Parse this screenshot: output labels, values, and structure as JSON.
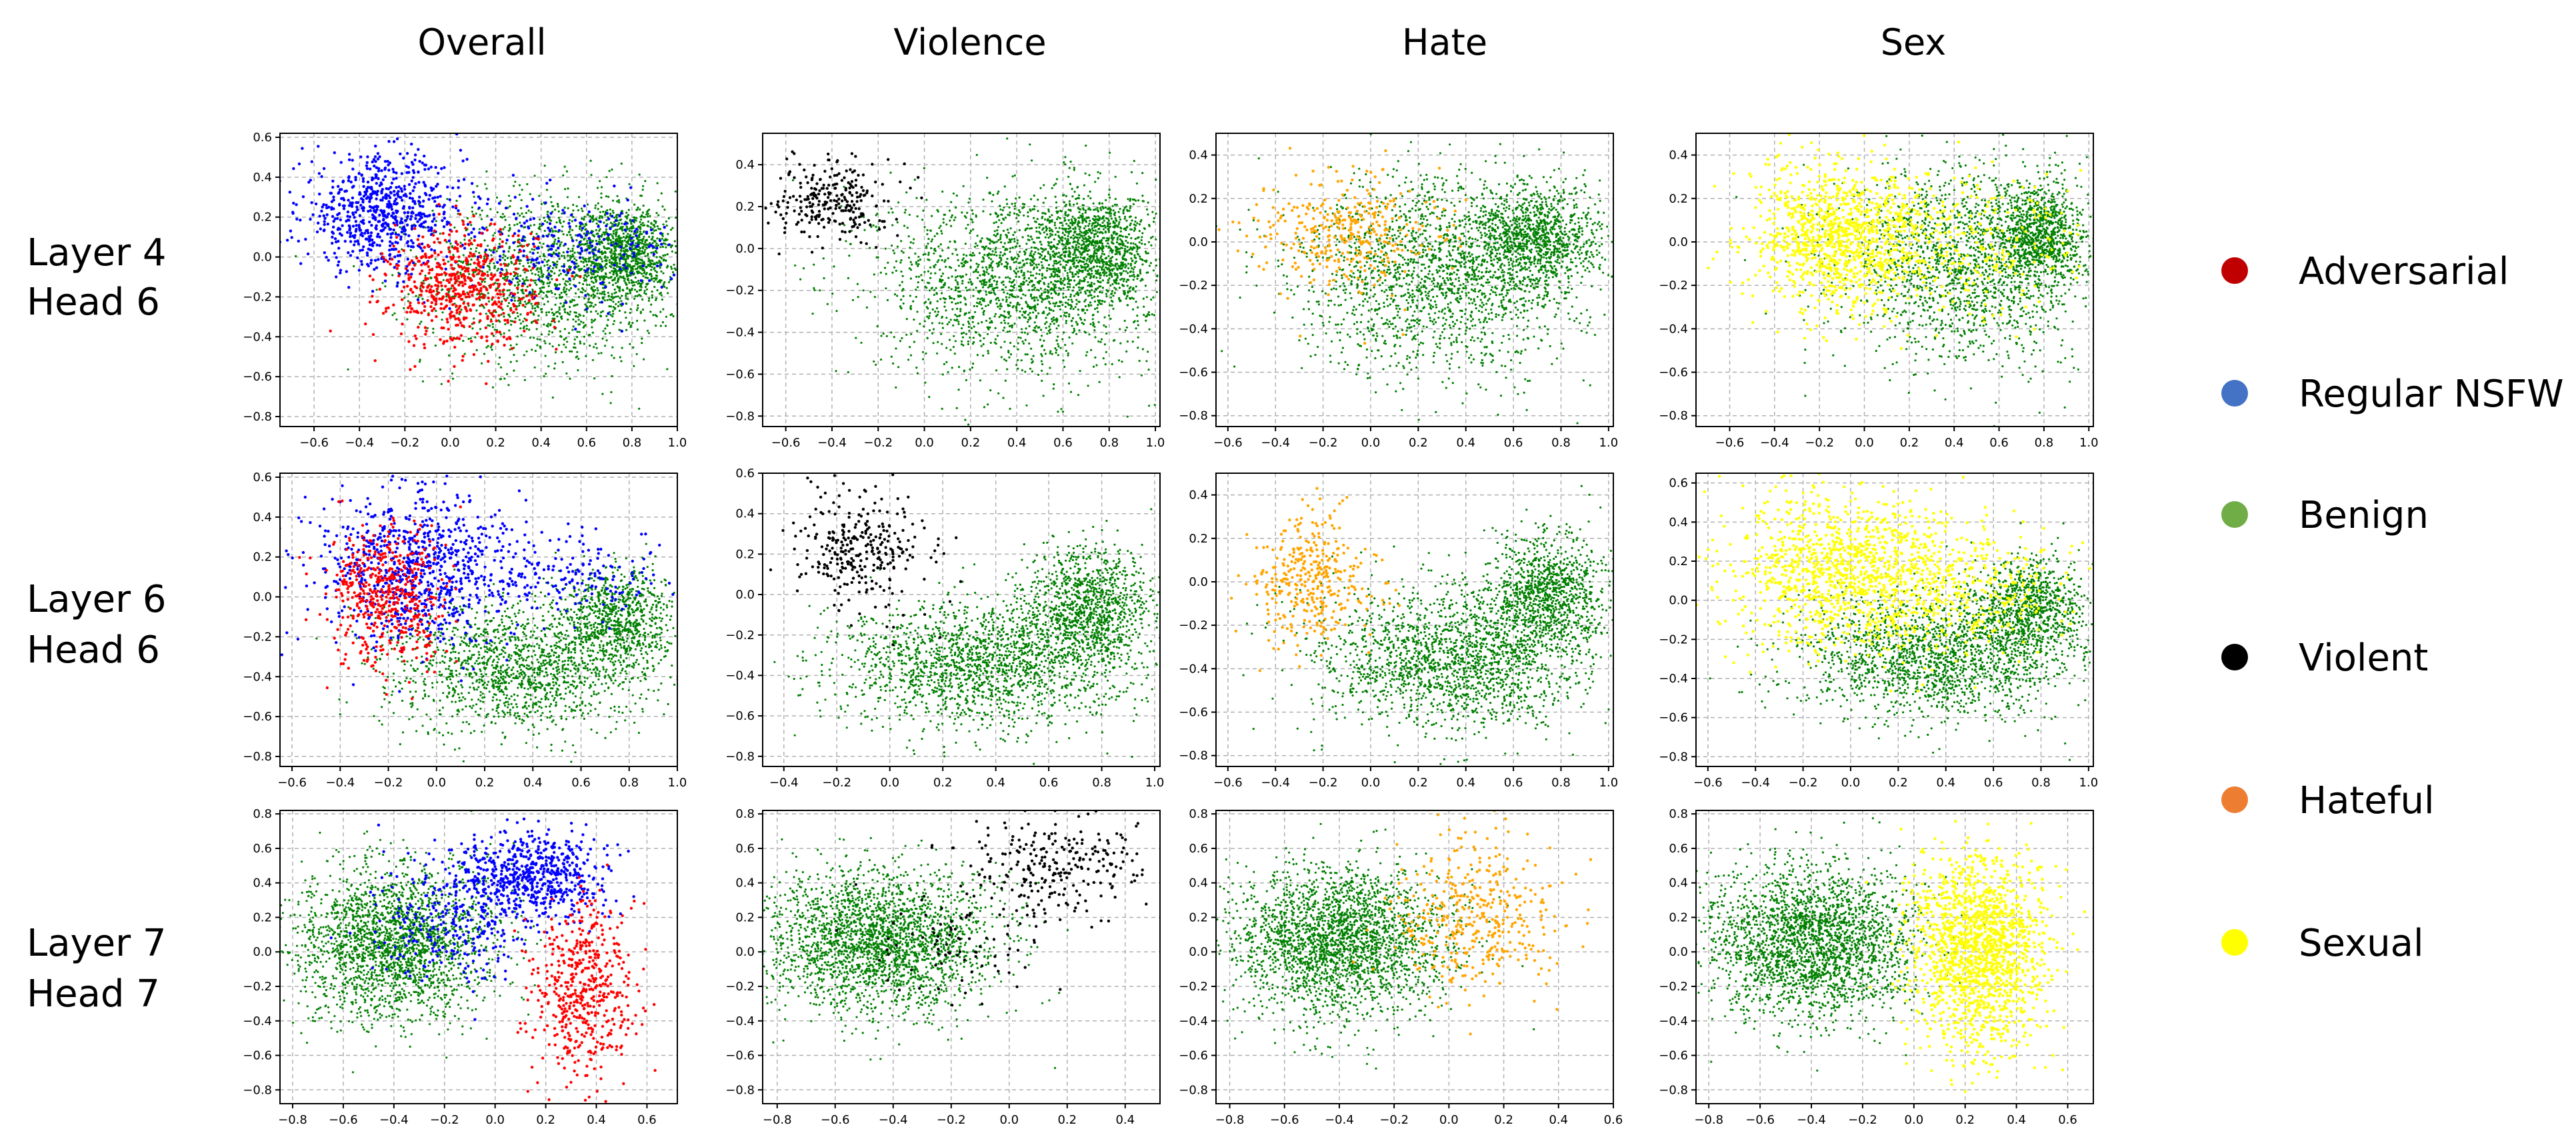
{
  "column_titles": [
    "Overall",
    "Violence",
    "Hate",
    "Sex"
  ],
  "row_labels": [
    {
      "line1": "Layer 4",
      "line2": "Head 6"
    },
    {
      "line1": "Layer 6",
      "line2": "Head 6"
    },
    {
      "line1": "Layer 7",
      "line2": "Head 7"
    }
  ],
  "legend": [
    {
      "label": "Adversarial",
      "color": "#c00000"
    },
    {
      "label": "Regular NSFW",
      "color": "#4472c4"
    },
    {
      "label": "Benign",
      "color": "#70ad47"
    },
    {
      "label": "Violent",
      "color": "#000000"
    },
    {
      "label": "Hateful",
      "color": "#ed7d31"
    },
    {
      "label": "Sexual",
      "color": "#ffff00"
    }
  ],
  "chart_data": [
    {
      "type": "scatter",
      "row": 0,
      "col": 0,
      "title": "Overall",
      "xlim": [
        -0.75,
        1.0
      ],
      "ylim": [
        -0.85,
        0.62
      ],
      "xticks": [
        -0.6,
        -0.4,
        -0.2,
        0.0,
        0.2,
        0.4,
        0.6,
        0.8,
        1.0
      ],
      "yticks": [
        -0.8,
        -0.6,
        -0.4,
        -0.2,
        0.0,
        0.2,
        0.4,
        0.6
      ],
      "series": [
        {
          "name": "Benign",
          "color": "#008000",
          "clusters": [
            {
              "cx": 0.45,
              "cy": -0.1,
              "sx": 0.28,
              "sy": 0.22,
              "n": 1500
            },
            {
              "cx": 0.78,
              "cy": 0.02,
              "sx": 0.1,
              "sy": 0.12,
              "n": 900
            }
          ]
        },
        {
          "name": "Regular NSFW",
          "color": "#0000ff",
          "clusters": [
            {
              "cx": -0.3,
              "cy": 0.22,
              "sx": 0.18,
              "sy": 0.14,
              "n": 700
            },
            {
              "cx": 0.5,
              "cy": 0.05,
              "sx": 0.25,
              "sy": 0.12,
              "n": 250
            }
          ]
        },
        {
          "name": "Adversarial",
          "color": "#ff0000",
          "clusters": [
            {
              "cx": 0.05,
              "cy": -0.15,
              "sx": 0.16,
              "sy": 0.15,
              "n": 600
            }
          ]
        }
      ]
    },
    {
      "type": "scatter",
      "row": 0,
      "col": 1,
      "title": "Violence",
      "xlim": [
        -0.7,
        1.02
      ],
      "ylim": [
        -0.85,
        0.55
      ],
      "xticks": [
        -0.6,
        -0.4,
        -0.2,
        0.0,
        0.2,
        0.4,
        0.6,
        0.8,
        1.0
      ],
      "yticks": [
        -0.8,
        -0.6,
        -0.4,
        -0.2,
        0.0,
        0.2,
        0.4
      ],
      "series": [
        {
          "name": "Benign",
          "color": "#008000",
          "clusters": [
            {
              "cx": 0.4,
              "cy": -0.15,
              "sx": 0.3,
              "sy": 0.22,
              "n": 1800
            },
            {
              "cx": 0.75,
              "cy": 0.0,
              "sx": 0.12,
              "sy": 0.13,
              "n": 1000
            }
          ]
        },
        {
          "name": "Violent",
          "color": "#000000",
          "clusters": [
            {
              "cx": -0.4,
              "cy": 0.23,
              "sx": 0.12,
              "sy": 0.1,
              "n": 260
            }
          ]
        }
      ]
    },
    {
      "type": "scatter",
      "row": 0,
      "col": 2,
      "title": "Hate",
      "xlim": [
        -0.65,
        1.02
      ],
      "ylim": [
        -0.85,
        0.5
      ],
      "xticks": [
        -0.6,
        -0.4,
        -0.2,
        0.0,
        0.2,
        0.4,
        0.6,
        0.8,
        1.0
      ],
      "yticks": [
        -0.8,
        -0.6,
        -0.4,
        -0.2,
        0.0,
        0.2,
        0.4
      ],
      "series": [
        {
          "name": "Benign",
          "color": "#008000",
          "clusters": [
            {
              "cx": 0.3,
              "cy": -0.15,
              "sx": 0.3,
              "sy": 0.22,
              "n": 1800
            },
            {
              "cx": 0.7,
              "cy": 0.02,
              "sx": 0.14,
              "sy": 0.12,
              "n": 1000
            }
          ]
        },
        {
          "name": "Hateful",
          "color": "#ffa500",
          "clusters": [
            {
              "cx": -0.1,
              "cy": 0.05,
              "sx": 0.18,
              "sy": 0.13,
              "n": 350
            }
          ]
        }
      ]
    },
    {
      "type": "scatter",
      "row": 0,
      "col": 3,
      "title": "Sex",
      "xlim": [
        -0.75,
        1.02
      ],
      "ylim": [
        -0.85,
        0.5
      ],
      "xticks": [
        -0.6,
        -0.4,
        -0.2,
        0.0,
        0.2,
        0.4,
        0.6,
        0.8,
        1.0
      ],
      "yticks": [
        -0.8,
        -0.6,
        -0.4,
        -0.2,
        0.0,
        0.2,
        0.4
      ],
      "series": [
        {
          "name": "Benign",
          "color": "#008000",
          "clusters": [
            {
              "cx": 0.45,
              "cy": -0.1,
              "sx": 0.28,
              "sy": 0.22,
              "n": 1600
            },
            {
              "cx": 0.78,
              "cy": 0.02,
              "sx": 0.1,
              "sy": 0.12,
              "n": 900
            }
          ]
        },
        {
          "name": "Sexual",
          "color": "#ffff00",
          "clusters": [
            {
              "cx": -0.1,
              "cy": 0.02,
              "sx": 0.2,
              "sy": 0.17,
              "n": 1100
            },
            {
              "cx": 0.5,
              "cy": 0.0,
              "sx": 0.25,
              "sy": 0.15,
              "n": 250
            }
          ]
        }
      ]
    },
    {
      "type": "scatter",
      "row": 1,
      "col": 0,
      "title": "Overall",
      "xlim": [
        -0.65,
        1.0
      ],
      "ylim": [
        -0.85,
        0.62
      ],
      "xticks": [
        -0.6,
        -0.4,
        -0.2,
        0.0,
        0.2,
        0.4,
        0.6,
        0.8,
        1.0
      ],
      "yticks": [
        -0.8,
        -0.6,
        -0.4,
        -0.2,
        0.0,
        0.2,
        0.4,
        0.6
      ],
      "series": [
        {
          "name": "Benign",
          "color": "#008000",
          "clusters": [
            {
              "cx": 0.35,
              "cy": -0.35,
              "sx": 0.28,
              "sy": 0.16,
              "n": 1500
            },
            {
              "cx": 0.75,
              "cy": -0.1,
              "sx": 0.12,
              "sy": 0.12,
              "n": 800
            }
          ]
        },
        {
          "name": "Regular NSFW",
          "color": "#0000ff",
          "clusters": [
            {
              "cx": -0.1,
              "cy": 0.15,
              "sx": 0.2,
              "sy": 0.2,
              "n": 800
            },
            {
              "cx": 0.5,
              "cy": 0.1,
              "sx": 0.25,
              "sy": 0.12,
              "n": 200
            }
          ]
        },
        {
          "name": "Adversarial",
          "color": "#ff0000",
          "clusters": [
            {
              "cx": -0.2,
              "cy": 0.0,
              "sx": 0.12,
              "sy": 0.18,
              "n": 500
            }
          ]
        }
      ]
    },
    {
      "type": "scatter",
      "row": 1,
      "col": 1,
      "title": "Violence",
      "xlim": [
        -0.48,
        1.02
      ],
      "ylim": [
        -0.85,
        0.6
      ],
      "xticks": [
        -0.4,
        -0.2,
        0.0,
        0.2,
        0.4,
        0.6,
        0.8,
        1.0
      ],
      "yticks": [
        -0.8,
        -0.6,
        -0.4,
        -0.2,
        0.0,
        0.2,
        0.4,
        0.6
      ],
      "series": [
        {
          "name": "Benign",
          "color": "#008000",
          "clusters": [
            {
              "cx": 0.35,
              "cy": -0.35,
              "sx": 0.28,
              "sy": 0.16,
              "n": 1800
            },
            {
              "cx": 0.75,
              "cy": -0.05,
              "sx": 0.12,
              "sy": 0.14,
              "n": 1000
            }
          ]
        },
        {
          "name": "Violent",
          "color": "#000000",
          "clusters": [
            {
              "cx": -0.1,
              "cy": 0.22,
              "sx": 0.13,
              "sy": 0.15,
              "n": 300
            }
          ]
        }
      ]
    },
    {
      "type": "scatter",
      "row": 1,
      "col": 2,
      "title": "Hate",
      "xlim": [
        -0.65,
        1.02
      ],
      "ylim": [
        -0.85,
        0.5
      ],
      "xticks": [
        -0.6,
        -0.4,
        -0.2,
        0.0,
        0.2,
        0.4,
        0.6,
        0.8,
        1.0
      ],
      "yticks": [
        -0.8,
        -0.6,
        -0.4,
        -0.2,
        0.0,
        0.2,
        0.4
      ],
      "series": [
        {
          "name": "Benign",
          "color": "#008000",
          "clusters": [
            {
              "cx": 0.35,
              "cy": -0.35,
              "sx": 0.28,
              "sy": 0.16,
              "n": 1800
            },
            {
              "cx": 0.75,
              "cy": -0.05,
              "sx": 0.12,
              "sy": 0.14,
              "n": 1000
            }
          ]
        },
        {
          "name": "Hateful",
          "color": "#ffa500",
          "clusters": [
            {
              "cx": -0.25,
              "cy": 0.0,
              "sx": 0.12,
              "sy": 0.14,
              "n": 350
            }
          ]
        }
      ]
    },
    {
      "type": "scatter",
      "row": 1,
      "col": 3,
      "title": "Sex",
      "xlim": [
        -0.65,
        1.02
      ],
      "ylim": [
        -0.85,
        0.65
      ],
      "xticks": [
        -0.6,
        -0.4,
        -0.2,
        0.0,
        0.2,
        0.4,
        0.6,
        0.8,
        1.0
      ],
      "yticks": [
        -0.8,
        -0.6,
        -0.4,
        -0.2,
        0.0,
        0.2,
        0.4,
        0.6
      ],
      "series": [
        {
          "name": "Benign",
          "color": "#008000",
          "clusters": [
            {
              "cx": 0.35,
              "cy": -0.3,
              "sx": 0.28,
              "sy": 0.16,
              "n": 1600
            },
            {
              "cx": 0.75,
              "cy": -0.05,
              "sx": 0.12,
              "sy": 0.14,
              "n": 900
            }
          ]
        },
        {
          "name": "Sexual",
          "color": "#ffff00",
          "clusters": [
            {
              "cx": 0.0,
              "cy": 0.15,
              "sx": 0.25,
              "sy": 0.2,
              "n": 1200
            },
            {
              "cx": 0.55,
              "cy": 0.05,
              "sx": 0.2,
              "sy": 0.15,
              "n": 250
            }
          ]
        }
      ]
    },
    {
      "type": "scatter",
      "row": 2,
      "col": 0,
      "title": "Overall",
      "xlim": [
        -0.85,
        0.72
      ],
      "ylim": [
        -0.88,
        0.82
      ],
      "xticks": [
        -0.8,
        -0.6,
        -0.4,
        -0.2,
        0.0,
        0.2,
        0.4,
        0.6
      ],
      "yticks": [
        -0.8,
        -0.6,
        -0.4,
        -0.2,
        0.0,
        0.2,
        0.4,
        0.6,
        0.8
      ],
      "series": [
        {
          "name": "Benign",
          "color": "#008000",
          "clusters": [
            {
              "cx": -0.4,
              "cy": 0.05,
              "sx": 0.2,
              "sy": 0.22,
              "n": 2200
            }
          ]
        },
        {
          "name": "Regular NSFW",
          "color": "#0000ff",
          "clusters": [
            {
              "cx": 0.15,
              "cy": 0.45,
              "sx": 0.14,
              "sy": 0.12,
              "n": 600
            },
            {
              "cx": -0.15,
              "cy": 0.2,
              "sx": 0.15,
              "sy": 0.2,
              "n": 300
            }
          ]
        },
        {
          "name": "Adversarial",
          "color": "#ff0000",
          "clusters": [
            {
              "cx": 0.35,
              "cy": -0.2,
              "sx": 0.1,
              "sy": 0.25,
              "n": 500
            }
          ]
        }
      ]
    },
    {
      "type": "scatter",
      "row": 2,
      "col": 1,
      "title": "Violence",
      "xlim": [
        -0.85,
        0.52
      ],
      "ylim": [
        -0.88,
        0.82
      ],
      "xticks": [
        -0.8,
        -0.6,
        -0.4,
        -0.2,
        0.0,
        0.2,
        0.4
      ],
      "yticks": [
        -0.8,
        -0.6,
        -0.4,
        -0.2,
        0.0,
        0.2,
        0.4,
        0.6,
        0.8
      ],
      "series": [
        {
          "name": "Benign",
          "color": "#008000",
          "clusters": [
            {
              "cx": -0.45,
              "cy": 0.05,
              "sx": 0.2,
              "sy": 0.2,
              "n": 2400
            }
          ]
        },
        {
          "name": "Violent",
          "color": "#000000",
          "clusters": [
            {
              "cx": 0.15,
              "cy": 0.5,
              "sx": 0.15,
              "sy": 0.15,
              "n": 260
            },
            {
              "cx": -0.2,
              "cy": 0.05,
              "sx": 0.15,
              "sy": 0.15,
              "n": 80
            }
          ]
        }
      ]
    },
    {
      "type": "scatter",
      "row": 2,
      "col": 2,
      "title": "Hate",
      "xlim": [
        -0.85,
        0.6
      ],
      "ylim": [
        -0.88,
        0.82
      ],
      "xticks": [
        -0.8,
        -0.6,
        -0.4,
        -0.2,
        0.0,
        0.2,
        0.4,
        0.6
      ],
      "yticks": [
        -0.8,
        -0.6,
        -0.4,
        -0.2,
        0.0,
        0.2,
        0.4,
        0.6,
        0.8
      ],
      "series": [
        {
          "name": "Benign",
          "color": "#008000",
          "clusters": [
            {
              "cx": -0.4,
              "cy": 0.05,
              "sx": 0.2,
              "sy": 0.22,
              "n": 2400
            }
          ]
        },
        {
          "name": "Hateful",
          "color": "#ffa500",
          "clusters": [
            {
              "cx": 0.1,
              "cy": 0.2,
              "sx": 0.15,
              "sy": 0.22,
              "n": 400
            }
          ]
        }
      ]
    },
    {
      "type": "scatter",
      "row": 2,
      "col": 3,
      "title": "Sex",
      "xlim": [
        -0.85,
        0.7
      ],
      "ylim": [
        -0.88,
        0.82
      ],
      "xticks": [
        -0.8,
        -0.6,
        -0.4,
        -0.2,
        0.0,
        0.2,
        0.4,
        0.6
      ],
      "yticks": [
        -0.8,
        -0.6,
        -0.4,
        -0.2,
        0.0,
        0.2,
        0.4,
        0.6,
        0.8
      ],
      "series": [
        {
          "name": "Benign",
          "color": "#008000",
          "clusters": [
            {
              "cx": -0.4,
              "cy": 0.05,
              "sx": 0.2,
              "sy": 0.22,
              "n": 2400
            }
          ]
        },
        {
          "name": "Sexual",
          "color": "#ffff00",
          "clusters": [
            {
              "cx": 0.25,
              "cy": 0.0,
              "sx": 0.13,
              "sy": 0.28,
              "n": 1500
            }
          ]
        }
      ]
    }
  ]
}
